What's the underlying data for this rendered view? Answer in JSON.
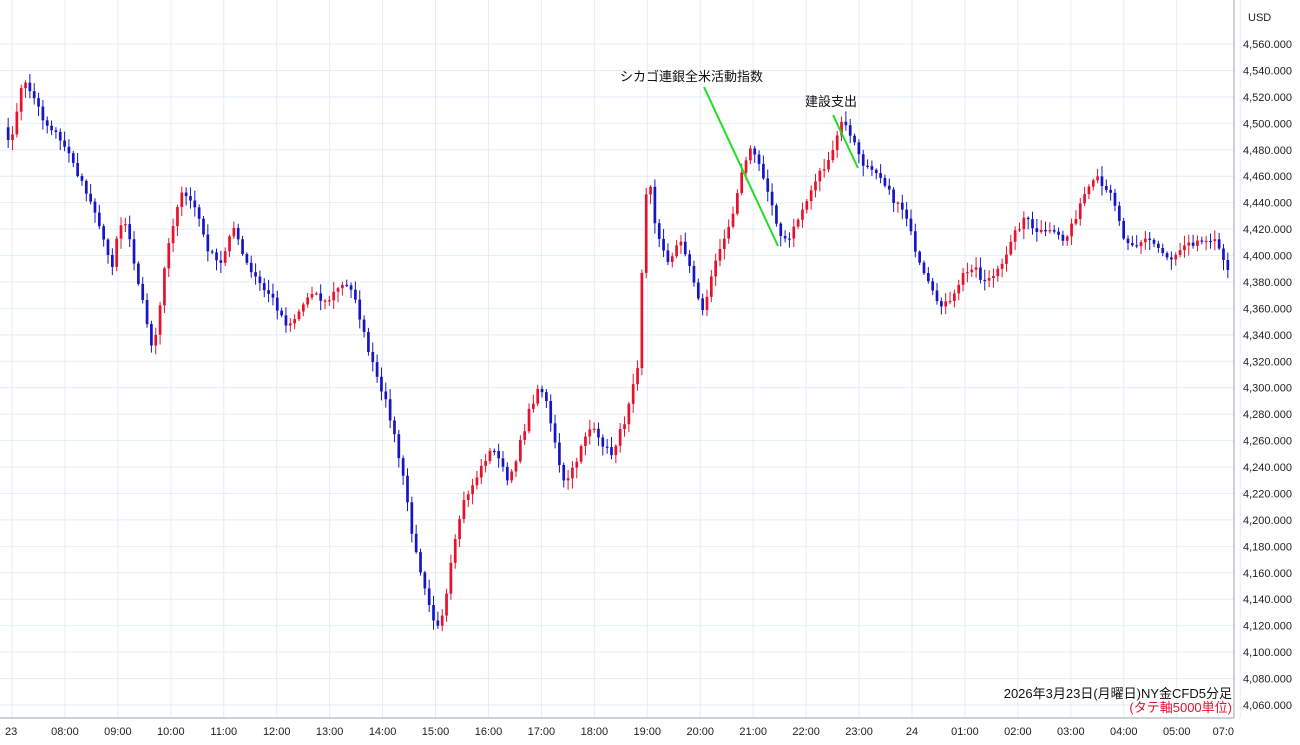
{
  "chart_data": {
    "type": "candlestick",
    "title": "2026年3月23日(月曜日)NY金CFD5分足",
    "subtitle": "(タテ軸5000単位)",
    "y_unit": "USD",
    "ylim": [
      4052,
      4572
    ],
    "y_ticks": [
      4060,
      4080,
      4100,
      4120,
      4140,
      4160,
      4180,
      4200,
      4220,
      4240,
      4260,
      4280,
      4300,
      4320,
      4340,
      4360,
      4380,
      4400,
      4420,
      4440,
      4460,
      4480,
      4500,
      4520,
      4540,
      4560
    ],
    "y_tick_labels": [
      "4,060.000",
      "4,080.000",
      "4,100.000",
      "4,120.000",
      "4,140.000",
      "4,160.000",
      "4,180.000",
      "4,200.000",
      "4,220.000",
      "4,240.000",
      "4,260.000",
      "4,280.000",
      "4,300.000",
      "4,320.000",
      "4,340.000",
      "4,360.000",
      "4,380.000",
      "4,400.000",
      "4,420.000",
      "4,440.000",
      "4,460.000",
      "4,480.000",
      "4,500.000",
      "4,520.000",
      "4,540.000",
      "4,560.000"
    ],
    "x_tick_labels": [
      "23",
      "08:00",
      "09:00",
      "10:00",
      "11:00",
      "12:00",
      "13:00",
      "14:00",
      "15:00",
      "16:00",
      "17:00",
      "18:00",
      "19:00",
      "20:00",
      "21:00",
      "22:00",
      "23:00",
      "24",
      "01:00",
      "02:00",
      "03:00",
      "04:00",
      "05:00",
      "07:0"
    ],
    "colors": {
      "up": "#e8102a",
      "down": "#1515c8",
      "annotation_line": "#22dd22",
      "grid": "#e3eef6"
    },
    "grid": true,
    "anchor_prices": [
      4500,
      4480,
      4505,
      4525,
      4532,
      4520,
      4512,
      4500,
      4495,
      4492,
      4488,
      4480,
      4470,
      4462,
      4452,
      4440,
      4430,
      4422,
      4400,
      4390,
      4420,
      4425,
      4410,
      4390,
      4370,
      4350,
      4330,
      4350,
      4390,
      4410,
      4430,
      4445,
      4448,
      4440,
      4430,
      4415,
      4400,
      4400,
      4395,
      4408,
      4420,
      4412,
      4400,
      4390,
      4385,
      4378,
      4372,
      4368,
      4358,
      4348,
      4346,
      4352,
      4360,
      4368,
      4370,
      4368,
      4364,
      4368,
      4374,
      4379,
      4378,
      4370,
      4358,
      4340,
      4326,
      4314,
      4300,
      4285,
      4270,
      4250,
      4230,
      4200,
      4175,
      4155,
      4140,
      4122,
      4118,
      4135,
      4165,
      4190,
      4210,
      4220,
      4225,
      4235,
      4245,
      4250,
      4255,
      4240,
      4232,
      4238,
      4255,
      4265,
      4285,
      4295,
      4300,
      4285,
      4265,
      4245,
      4230,
      4235,
      4245,
      4255,
      4265,
      4270,
      4265,
      4255,
      4250,
      4255,
      4270,
      4280,
      4300,
      4315,
      4440,
      4455,
      4420,
      4405,
      4395,
      4402,
      4412,
      4402,
      4392,
      4372,
      4358,
      4368,
      4392,
      4405,
      4410,
      4422,
      4440,
      4460,
      4478,
      4482,
      4470,
      4455,
      4440,
      4425,
      4415,
      4412,
      4420,
      4428,
      4438,
      4446,
      4458,
      4465,
      4472,
      4480,
      4498,
      4502,
      4492,
      4482,
      4472,
      4466,
      4462,
      4458,
      4452,
      4446,
      4440,
      4435,
      4425,
      4410,
      4398,
      4388,
      4380,
      4370,
      4360,
      4364,
      4372,
      4380,
      4388,
      4390,
      4388,
      4380,
      4380,
      4385,
      4392,
      4400,
      4408,
      4418,
      4425,
      4428,
      4422,
      4418,
      4420,
      4422,
      4418,
      4410,
      4415,
      4424,
      4438,
      4448,
      4458,
      4462,
      4455,
      4450,
      4440,
      4425,
      4410,
      4405,
      4405,
      4410,
      4414,
      4410,
      4405,
      4400,
      4395,
      4400,
      4405,
      4408,
      4405,
      4410,
      4412,
      4408,
      4410,
      4402,
      4390
    ],
    "annotations": [
      {
        "text": "シカゴ連銀全米活動指数"
      },
      {
        "text": "建設支出"
      }
    ]
  }
}
